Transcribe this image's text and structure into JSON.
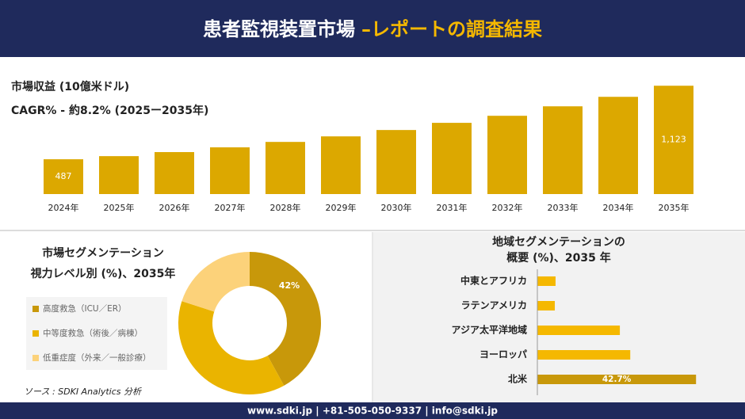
{
  "header": {
    "title": "患者監視装置市場",
    "subtitle": "–レポートの調査結果"
  },
  "source": "ソース : SDKI Analytics 分析",
  "footer": "www.sdki.jp | +81-505-050-9337 | info@sdki.jp",
  "chart_data": [
    {
      "type": "bar",
      "title": "市場収益 (10億米ドル)",
      "subtitle": "CAGR% - 約8.2% (2025ー2035年)",
      "categories": [
        "2024年",
        "2025年",
        "2026年",
        "2027年",
        "2028年",
        "2029年",
        "2030年",
        "2031年",
        "2032年",
        "2033年",
        "2034年",
        "2035年"
      ],
      "values": [
        487,
        514,
        549,
        590,
        637,
        685,
        740,
        802,
        863,
        945,
        1027,
        1123
      ],
      "value_labels": [
        "487",
        null,
        null,
        null,
        null,
        null,
        null,
        null,
        null,
        null,
        null,
        "1,123"
      ],
      "color": "#dca800",
      "ylim": [
        186,
        1200
      ]
    },
    {
      "type": "donut",
      "title": "市場セグメンテーション",
      "subtitle": "視力レベル別 (%)、2035年",
      "categories": [
        "高度救急（ICU／ER）",
        "中等度救急（術後／病棟）",
        "低重症度（外来／一般診療）"
      ],
      "values": [
        42,
        38,
        20
      ],
      "value_labels": [
        "42%",
        null,
        null
      ],
      "colors": [
        "#c8980a",
        "#eab400",
        "#fcd27a"
      ]
    },
    {
      "type": "hbar",
      "title": "地域セグメンテーションの",
      "subtitle": "概要 (%)、2035 年",
      "categories": [
        "中東とアフリカ",
        "ラテンアメリカ",
        "アジア太平洋地域",
        "ヨーロッパ",
        "北米"
      ],
      "values": [
        4.9,
        4.7,
        22.2,
        25.0,
        42.7
      ],
      "value_labels": [
        null,
        null,
        null,
        null,
        "42.7%"
      ],
      "colors": [
        "#f5b800",
        "#f5b800",
        "#f5b800",
        "#f5b800",
        "#c8980a"
      ],
      "xlim": [
        0,
        45
      ]
    }
  ]
}
